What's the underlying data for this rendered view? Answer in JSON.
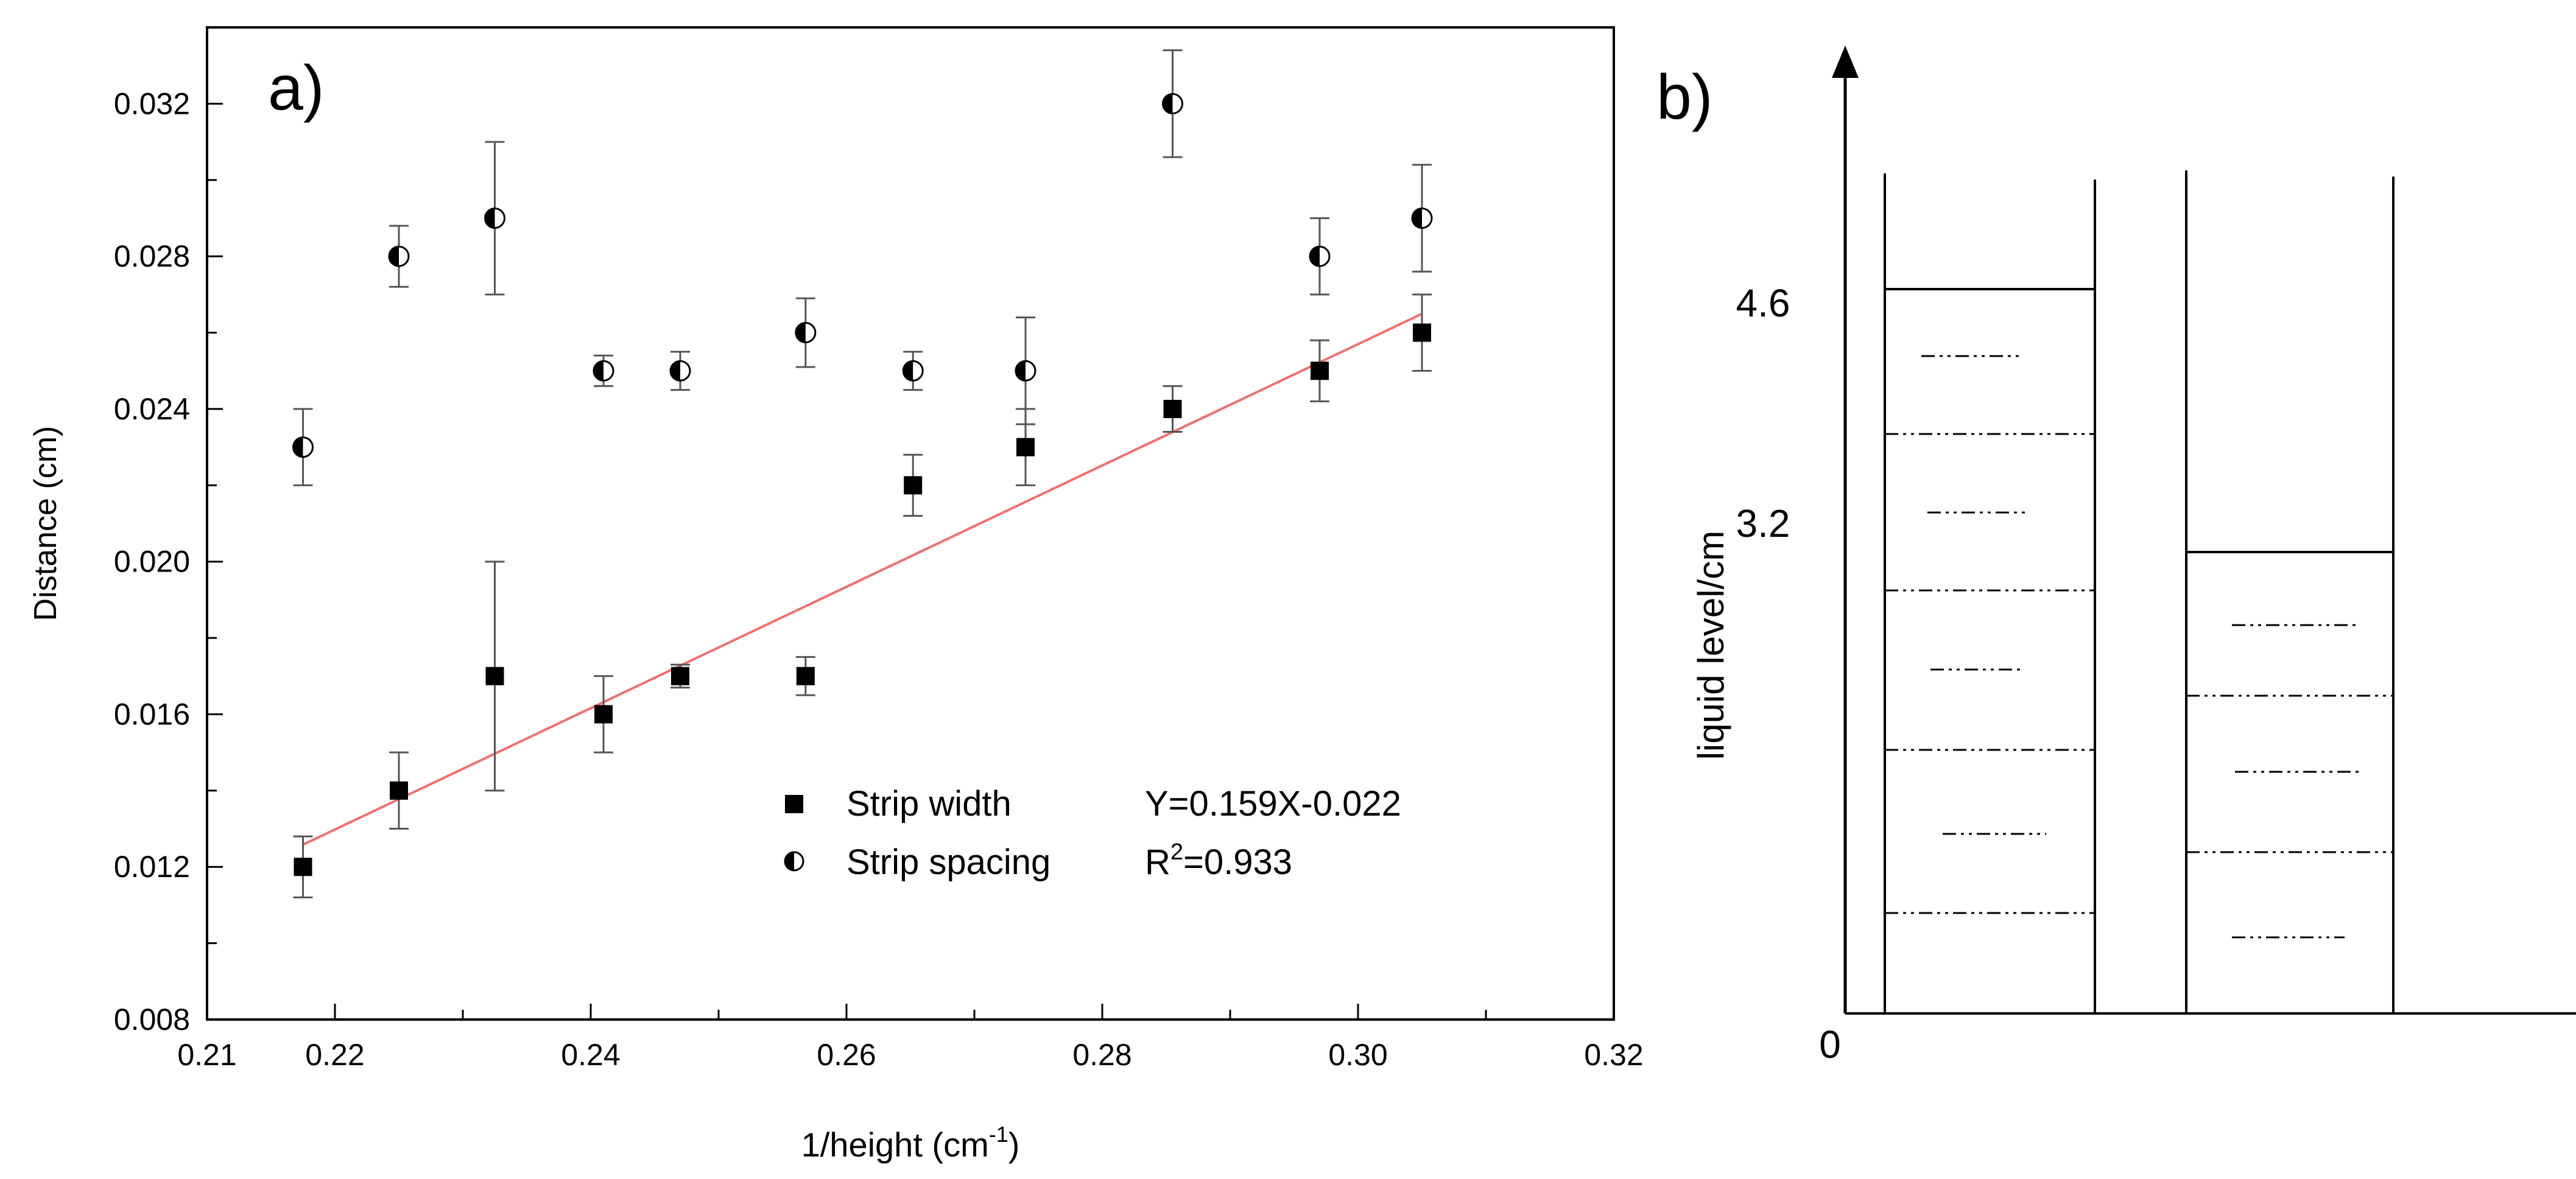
{
  "panel_a": {
    "label": "a)",
    "chart_data": {
      "type": "scatter",
      "xlabel_main": "1/height (cm",
      "xlabel_sup": "-1",
      "xlabel_close": ")",
      "ylabel": "Distance (cm)",
      "xlim": [
        0.21,
        0.32
      ],
      "ylim": [
        0.008,
        0.034
      ],
      "xticks": [
        0.21,
        0.22,
        0.24,
        0.26,
        0.28,
        0.3,
        0.32
      ],
      "xtick_labels": [
        "0.21",
        "0.22",
        "0.24",
        "0.26",
        "0.28",
        "0.30",
        "0.32"
      ],
      "yticks": [
        0.008,
        0.012,
        0.016,
        0.02,
        0.024,
        0.028,
        0.032
      ],
      "ytick_labels": [
        "0.008",
        "0.012",
        "0.016",
        "0.020",
        "0.024",
        "0.028",
        "0.032"
      ],
      "series": [
        {
          "name": "Strip width",
          "marker": "square",
          "x": [
            0.2175,
            0.225,
            0.2325,
            0.241,
            0.247,
            0.2568,
            0.2652,
            0.274,
            0.2855,
            0.297,
            0.305
          ],
          "y": [
            0.012,
            0.014,
            0.017,
            0.016,
            0.017,
            0.017,
            0.022,
            0.023,
            0.024,
            0.025,
            0.026
          ],
          "err": [
            0.0008,
            0.001,
            0.003,
            0.001,
            0.0003,
            0.0005,
            0.0008,
            0.001,
            0.0006,
            0.0008,
            0.001
          ]
        },
        {
          "name": "Strip spacing",
          "marker": "half-filled-circle",
          "x": [
            0.2175,
            0.225,
            0.2325,
            0.241,
            0.247,
            0.2568,
            0.2652,
            0.274,
            0.2855,
            0.297,
            0.305
          ],
          "y": [
            0.023,
            0.028,
            0.029,
            0.025,
            0.025,
            0.026,
            0.025,
            0.025,
            0.032,
            0.028,
            0.029
          ],
          "err": [
            0.001,
            0.0008,
            0.002,
            0.0004,
            0.0005,
            0.0009,
            0.0005,
            0.0014,
            0.0014,
            0.001,
            0.0014
          ]
        }
      ],
      "fit": {
        "slope": 0.159,
        "intercept": -0.022,
        "x_range": [
          0.2175,
          0.305
        ],
        "color": "#f07070",
        "equation": "Y=0.159X-0.022",
        "r2_prefix": "R",
        "r2_sup": "2",
        "r2_value": "=0.933"
      },
      "legend_position": "bottom-right"
    }
  },
  "panel_b": {
    "label": "b)",
    "ylabel": "liquid level/cm",
    "tick_labels": [
      "4.6",
      "3.2",
      "0"
    ]
  }
}
